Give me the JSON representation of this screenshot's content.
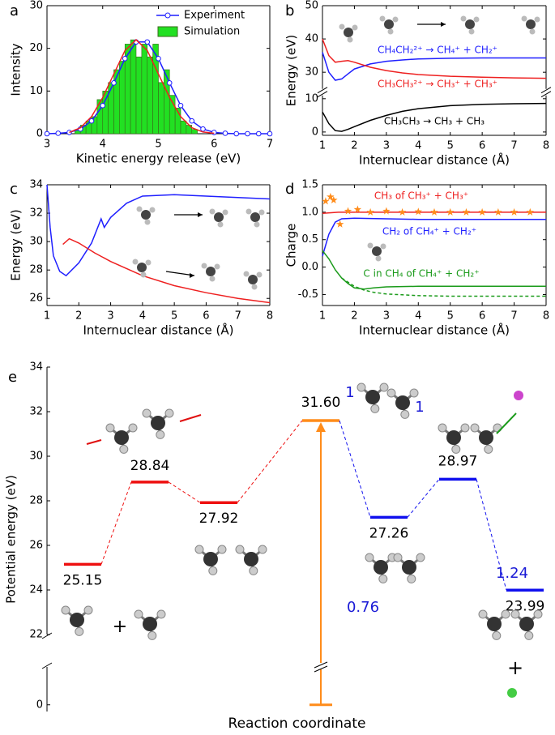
{
  "chart_data": [
    {
      "type": "histogram",
      "label": "a",
      "xlabel": "Kinetic energy release (eV)",
      "ylabel": "Intensity",
      "xlim": [
        3,
        7
      ],
      "xticks": [
        3,
        4,
        5,
        6,
        7
      ],
      "ylim": [
        0,
        30
      ],
      "yticks": [
        0,
        10,
        20,
        30
      ],
      "legend": "upper right",
      "histogram": {
        "name": "Simulation",
        "color": "#22e022",
        "bins": [
          3.5,
          3.6,
          3.7,
          3.8,
          3.9,
          4.0,
          4.1,
          4.2,
          4.3,
          4.4,
          4.5,
          4.6,
          4.7,
          4.8,
          4.9,
          5.0,
          5.1,
          5.2,
          5.3,
          5.4,
          5.5,
          5.6,
          5.7
        ],
        "counts": [
          1,
          2,
          3,
          4,
          8,
          10,
          12,
          15,
          17,
          21,
          22,
          18,
          21,
          18,
          21,
          12,
          15,
          9,
          6,
          3,
          2,
          1
        ]
      },
      "series": [
        {
          "name": "Experiment",
          "color": "#1f1fff",
          "marker": "circle",
          "x": [
            3.0,
            3.2,
            3.4,
            3.6,
            3.8,
            4.0,
            4.2,
            4.4,
            4.6,
            4.8,
            5.0,
            5.2,
            5.4,
            5.6,
            5.8,
            6.0,
            6.2,
            6.4,
            6.6,
            6.8,
            7.0
          ],
          "values": [
            0,
            0.1,
            0.3,
            1.1,
            3,
            6.6,
            11.9,
            17.6,
            21.5,
            21.5,
            17.6,
            11.9,
            6.6,
            3,
            1.1,
            0.3,
            0.1,
            0,
            0,
            0,
            0
          ]
        },
        {
          "color": "#ee2020",
          "x": [
            3.4,
            3.6,
            3.8,
            4.0,
            4.2,
            4.4,
            4.6,
            4.8,
            5.0,
            5.2,
            5.4,
            5.6,
            5.8,
            6.0
          ],
          "values": [
            0.3,
            1.4,
            4,
            8.5,
            14,
            19.5,
            22,
            19.5,
            14,
            8.5,
            4,
            1.4,
            0.4,
            0.1
          ]
        }
      ]
    },
    {
      "type": "line",
      "label": "b",
      "xlabel": "Internuclear distance (Å)",
      "ylabel": "Energy (eV)",
      "xlim": [
        1,
        8
      ],
      "xticks": [
        1,
        2,
        3,
        4,
        5,
        6,
        7,
        8
      ],
      "ylim": [
        -1,
        50
      ],
      "ybreak": [
        11,
        25
      ],
      "yticks": [
        0,
        10,
        30,
        40,
        50
      ],
      "series": [
        {
          "name": "CH₄CH₂²⁺ → CH₄⁺ + CH₂⁺",
          "color": "#1f1fff",
          "x": [
            1,
            1.2,
            1.4,
            1.6,
            1.8,
            2,
            2.5,
            3,
            3.5,
            4,
            5,
            6,
            7,
            8
          ],
          "values": [
            36,
            30,
            27.6,
            28,
            29.5,
            31,
            32.5,
            33.3,
            33.7,
            34,
            34.2,
            34.3,
            34.3,
            34.3
          ]
        },
        {
          "name": "CH₃CH₃²⁺ → CH₃⁺ + CH₃⁺",
          "color": "#ee2020",
          "x": [
            1,
            1.2,
            1.4,
            1.6,
            1.8,
            2,
            2.5,
            3,
            3.5,
            4,
            5,
            6,
            7,
            8
          ],
          "values": [
            40,
            35,
            33,
            33.3,
            33.5,
            33,
            31.5,
            30.5,
            29.8,
            29.3,
            28.8,
            28.5,
            28.3,
            28.2
          ]
        },
        {
          "name": "CH₃CH₃ → CH₃ + CH₃",
          "color": "#000000",
          "x": [
            1,
            1.2,
            1.4,
            1.6,
            1.8,
            2,
            2.5,
            3,
            3.5,
            4,
            5,
            6,
            7,
            8
          ],
          "values": [
            6,
            2.5,
            0.4,
            0.2,
            0.8,
            1.6,
            3.5,
            5,
            6.2,
            7,
            7.9,
            8.3,
            8.5,
            8.6
          ]
        }
      ]
    },
    {
      "type": "line",
      "label": "c",
      "xlabel": "Internuclear distance (Å)",
      "ylabel": "Energy (eV)",
      "xlim": [
        1,
        8
      ],
      "xticks": [
        1,
        2,
        3,
        4,
        5,
        6,
        7,
        8
      ],
      "ylim": [
        25.5,
        34
      ],
      "yticks": [
        26,
        28,
        30,
        32,
        34
      ],
      "series": [
        {
          "color": "#1f1fff",
          "x": [
            1,
            1.1,
            1.2,
            1.4,
            1.6,
            2,
            2.4,
            2.7,
            2.8,
            3,
            3.5,
            4,
            5,
            6,
            7,
            8
          ],
          "values": [
            34,
            31,
            29,
            27.9,
            27.6,
            28.5,
            29.9,
            31.6,
            31,
            31.7,
            32.7,
            33.2,
            33.3,
            33.2,
            33.1,
            33
          ]
        },
        {
          "color": "#ee2020",
          "x": [
            1.5,
            1.7,
            2,
            2.5,
            3,
            4,
            5,
            6,
            7,
            8
          ],
          "values": [
            29.8,
            30.2,
            29.9,
            29.2,
            28.6,
            27.6,
            26.9,
            26.4,
            26,
            25.7
          ]
        }
      ]
    },
    {
      "type": "line",
      "label": "d",
      "xlabel": "Internuclear distance (Å)",
      "ylabel": "Charge",
      "xlim": [
        1,
        8
      ],
      "xticks": [
        1,
        2,
        3,
        4,
        5,
        6,
        7,
        8
      ],
      "ylim": [
        -0.7,
        1.5
      ],
      "yticks": [
        -0.5,
        {
          "value": 0,
          "label": "0.0"
        },
        0.5,
        {
          "value": 1,
          "label": "1.0"
        },
        1.5
      ],
      "series": [
        {
          "name": "CH₃ of CH₃⁺ + CH₃⁺",
          "color": "#ee2020",
          "x": [
            1,
            1.5,
            2,
            3,
            4,
            5,
            6,
            7,
            8
          ],
          "values": [
            0.98,
            1,
            1,
            1,
            1,
            1,
            1,
            1,
            1
          ]
        },
        {
          "name": "CH₂ of CH₄⁺ + CH₂⁺",
          "color": "#1f1fff",
          "x": [
            1,
            1.2,
            1.4,
            1.6,
            2,
            3,
            4,
            5,
            6,
            7,
            8
          ],
          "values": [
            0.2,
            0.6,
            0.82,
            0.88,
            0.89,
            0.88,
            0.87,
            0.87,
            0.87,
            0.87,
            0.87
          ]
        },
        {
          "name": "C in CH₄ of CH₄⁺ + CH₂⁺",
          "color": "#1a9a1a",
          "x": [
            1,
            1.2,
            1.4,
            1.6,
            1.8,
            2,
            2.3,
            2.6,
            3,
            4,
            5,
            6,
            7,
            8
          ],
          "values": [
            0.3,
            0.15,
            -0.05,
            -0.2,
            -0.3,
            -0.38,
            -0.4,
            -0.38,
            -0.36,
            -0.35,
            -0.35,
            -0.35,
            -0.35,
            -0.35
          ]
        },
        {
          "color": "#1a9a1a",
          "dash": true,
          "x": [
            1.6,
            2,
            2.3,
            2.6,
            3,
            4,
            5,
            6,
            7,
            8
          ],
          "values": [
            -0.2,
            -0.35,
            -0.42,
            -0.46,
            -0.49,
            -0.52,
            -0.53,
            -0.53,
            -0.53,
            -0.53
          ]
        },
        {
          "color": "#ff8c1a",
          "marker": "star",
          "x": [
            1.1,
            1.25,
            1.35,
            1.55,
            1.8,
            2.1,
            2.5,
            3,
            3.5,
            4,
            4.5,
            5,
            5.5,
            6,
            6.5,
            7,
            7.5
          ],
          "values": [
            1.2,
            1.28,
            1.22,
            0.78,
            1.02,
            1.05,
            1,
            1.02,
            1,
            1.01,
            1,
            1,
            1,
            1,
            1,
            1,
            1
          ]
        }
      ]
    },
    {
      "type": "levels",
      "label": "e",
      "xlabel": "Reaction coordinate",
      "ylabel": "Potential energy (eV)",
      "ylim": [
        -0.3,
        34
      ],
      "ybreak": [
        1.7,
        22
      ],
      "yticks": [
        0,
        22,
        24,
        26,
        28,
        30,
        32,
        34
      ],
      "values": [
        25.15,
        28.84,
        27.92,
        31.6,
        27.26,
        28.97,
        23.99
      ],
      "value_labels": [
        "25.15",
        "28.84",
        "27.92",
        "31.60",
        "27.26",
        "28.97",
        "23.99"
      ],
      "colors": [
        "#ee1010",
        "#ee1010",
        "#ee1010",
        "#ff8c1a",
        "#1010ee",
        "#1010ee",
        "#1010ee"
      ],
      "connector_colors": [
        "#ee1010",
        "#ee1010",
        "#ee1010",
        "#1010ee",
        "#1010ee",
        "#1010ee"
      ],
      "arrow_from": 0,
      "arrow_color": "#ff8c1a",
      "annotations": [
        "1",
        "1",
        "1.24",
        "0.76",
        "+",
        "+"
      ]
    }
  ]
}
